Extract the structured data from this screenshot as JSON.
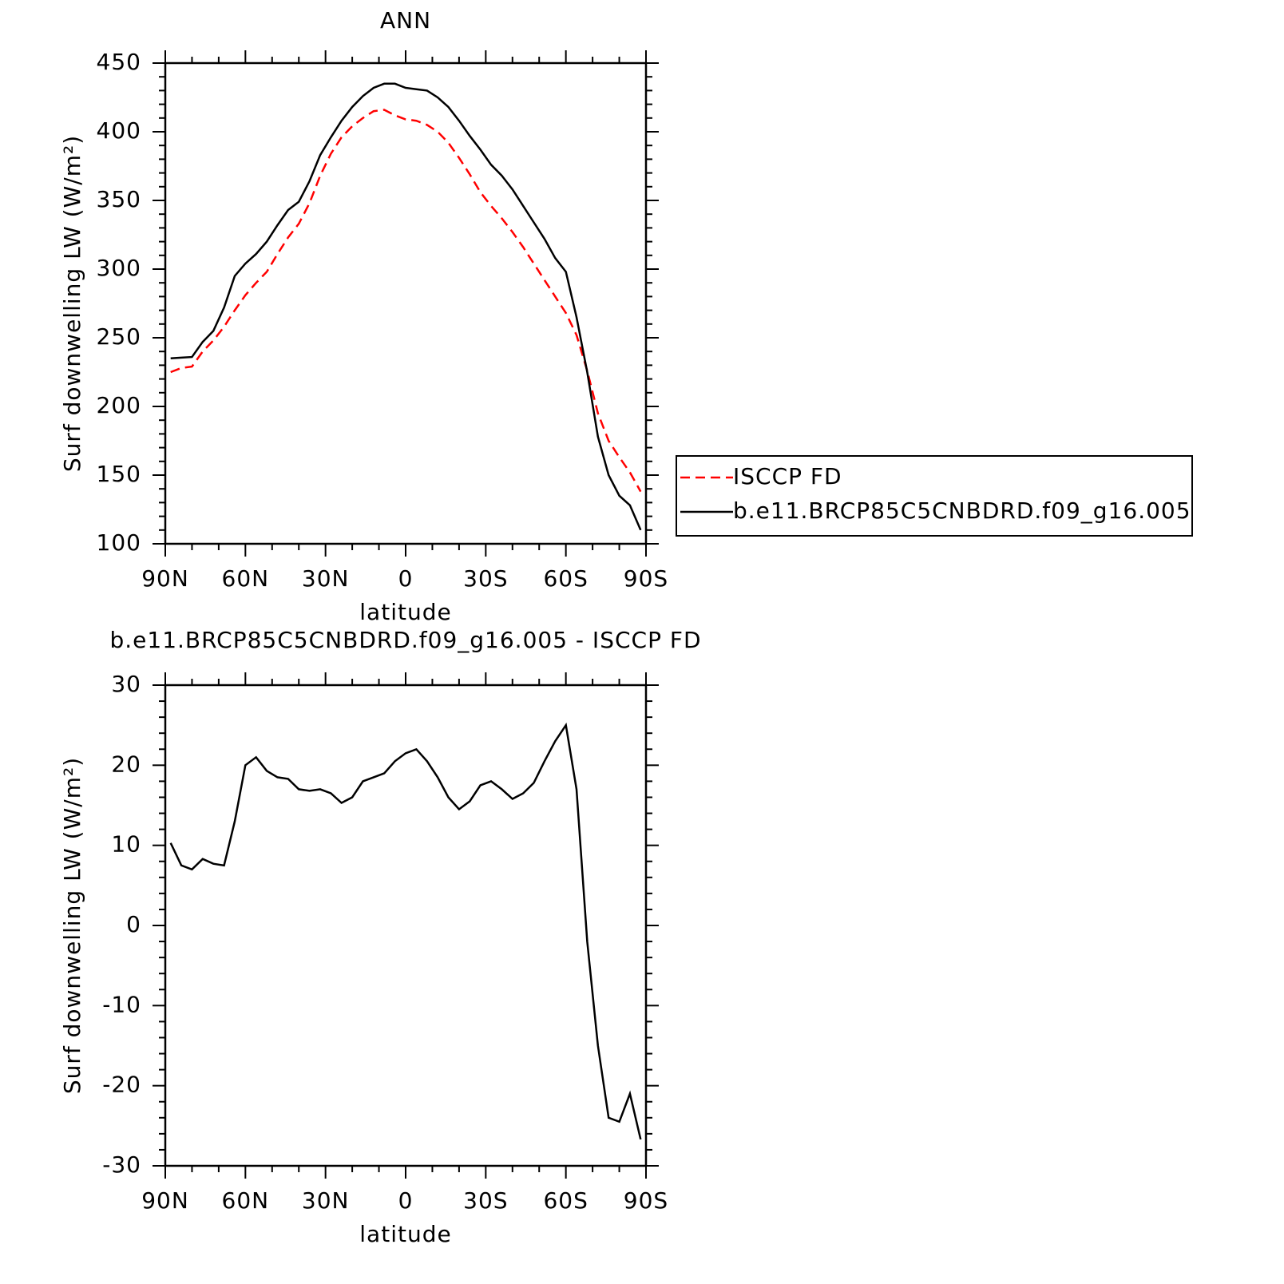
{
  "chart_data": [
    {
      "type": "line",
      "title": "ANN",
      "y_label": "Surf downwelling LW (W/m²)",
      "x_label": "latitude",
      "x": [
        88,
        84,
        80,
        76,
        72,
        68,
        64,
        60,
        56,
        52,
        48,
        44,
        40,
        36,
        32,
        28,
        24,
        20,
        16,
        12,
        8,
        4,
        0,
        -4,
        -8,
        -12,
        -16,
        -20,
        -24,
        -28,
        -32,
        -36,
        -40,
        -44,
        -48,
        -52,
        -56,
        -60,
        -64,
        -68,
        -72,
        -76,
        -80,
        -84,
        -88
      ],
      "series": [
        {
          "name": "ISCCP FD",
          "color": "#ff0000",
          "style": "dashed",
          "values": [
            225,
            228,
            229,
            240,
            248,
            258,
            270,
            281,
            290,
            298,
            311,
            323,
            333,
            348,
            368,
            384,
            396,
            404,
            410,
            415,
            416,
            412,
            409,
            408,
            405,
            400,
            392,
            381,
            369,
            356,
            346,
            337,
            327,
            316,
            304,
            292,
            280,
            268,
            252,
            226,
            195,
            175,
            163,
            152,
            138
          ]
        },
        {
          "name": "b.e11.BRCP85C5CNBDRD.f09_g16.005",
          "color": "#000000",
          "style": "solid",
          "values": [
            235,
            235.5,
            236,
            247,
            255,
            272,
            295,
            304,
            311,
            320,
            332,
            343,
            349,
            364,
            383,
            396,
            408,
            418,
            426,
            432,
            435,
            435,
            432,
            431,
            430,
            425,
            418,
            408,
            397,
            387,
            376,
            368,
            358,
            346,
            334,
            322,
            308,
            298,
            265,
            225,
            178,
            150,
            135,
            128,
            110
          ]
        }
      ],
      "xlim": [
        90,
        -90
      ],
      "xticks": [
        {
          "value": 90,
          "label": "90N"
        },
        {
          "value": 60,
          "label": "60N"
        },
        {
          "value": 30,
          "label": "30N"
        },
        0,
        {
          "value": -30,
          "label": "30S"
        },
        {
          "value": -60,
          "label": "60S"
        },
        {
          "value": -90,
          "label": "90S"
        }
      ],
      "ylim": [
        100,
        450
      ],
      "yticks": [
        100,
        150,
        200,
        250,
        300,
        350,
        400,
        450
      ],
      "legend": "right"
    },
    {
      "type": "line",
      "title": "b.e11.BRCP85C5CNBDRD.f09_g16.005 - ISCCP FD",
      "y_label": "Surf downwelling LW (W/m²)",
      "x_label": "latitude",
      "x": [
        88,
        84,
        80,
        76,
        72,
        68,
        64,
        60,
        56,
        52,
        48,
        44,
        40,
        36,
        32,
        28,
        24,
        20,
        16,
        12,
        8,
        4,
        0,
        -4,
        -8,
        -12,
        -16,
        -20,
        -24,
        -28,
        -32,
        -36,
        -40,
        -44,
        -48,
        -52,
        -56,
        -60,
        -64,
        -68,
        -72,
        -76,
        -80,
        -84,
        -88
      ],
      "series": [
        {
          "color": "#000000",
          "style": "solid",
          "values": [
            10.3,
            7.5,
            7,
            8.3,
            7.7,
            7.5,
            13,
            20,
            21,
            19.3,
            18.5,
            18.3,
            17,
            16.8,
            17,
            16.5,
            15.3,
            16,
            18,
            18.5,
            19,
            20.5,
            21.5,
            22,
            20.5,
            18.5,
            16,
            14.5,
            15.5,
            17.5,
            18,
            17,
            15.8,
            16.5,
            17.8,
            20.5,
            23,
            25,
            17,
            -2,
            -15,
            -24,
            -24.5,
            -21,
            -26.7
          ]
        }
      ],
      "xlim": [
        90,
        -90
      ],
      "xticks": [
        {
          "value": 90,
          "label": "90N"
        },
        {
          "value": 60,
          "label": "60N"
        },
        {
          "value": 30,
          "label": "30N"
        },
        0,
        {
          "value": -30,
          "label": "30S"
        },
        {
          "value": -60,
          "label": "60S"
        },
        {
          "value": -90,
          "label": "90S"
        }
      ],
      "ylim": [
        -30,
        30
      ],
      "yticks": [
        -30,
        -20,
        -10,
        0,
        10,
        20,
        30
      ]
    }
  ]
}
